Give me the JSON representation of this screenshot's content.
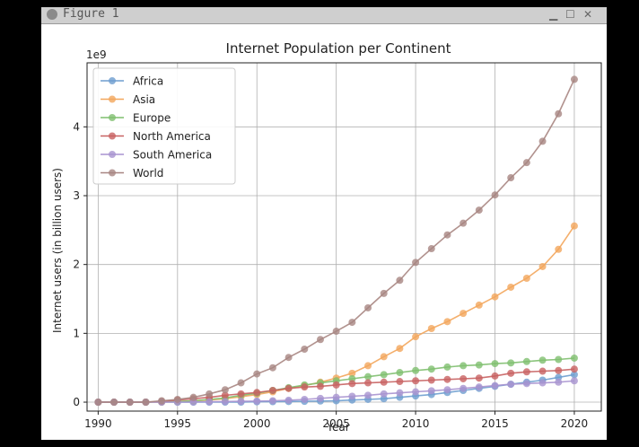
{
  "window": {
    "title": "Figure 1",
    "min_icon": "minimize-icon",
    "max_icon": "maximize-icon",
    "close_icon": "close-icon"
  },
  "chart_data": {
    "type": "line",
    "title": "Internet Population per Continent",
    "xlabel": "Year",
    "ylabel": "Internet users (in billion users)",
    "y_offset_label": "1e9",
    "xlim": [
      1989.3,
      2021.7
    ],
    "ylim": [
      -0.13,
      4.93
    ],
    "x_ticks": [
      1990,
      1995,
      2000,
      2005,
      2010,
      2015,
      2020
    ],
    "y_ticks": [
      0,
      1,
      2,
      3,
      4
    ],
    "grid": true,
    "legend_position": "top-left",
    "x": [
      1990,
      1991,
      1992,
      1993,
      1994,
      1995,
      1996,
      1997,
      1998,
      1999,
      2000,
      2001,
      2002,
      2003,
      2004,
      2005,
      2006,
      2007,
      2008,
      2009,
      2010,
      2011,
      2012,
      2013,
      2014,
      2015,
      2016,
      2017,
      2018,
      2019,
      2020
    ],
    "series": [
      {
        "name": "Africa",
        "color": "#6e9ecf",
        "values": [
          0,
          0,
          0,
          0,
          0,
          0,
          0,
          0,
          0,
          0,
          0.005,
          0.007,
          0.009,
          0.012,
          0.016,
          0.02,
          0.03,
          0.04,
          0.05,
          0.07,
          0.09,
          0.11,
          0.14,
          0.17,
          0.2,
          0.23,
          0.26,
          0.29,
          0.32,
          0.36,
          0.4
        ]
      },
      {
        "name": "Asia",
        "color": "#f3a65c",
        "values": [
          0,
          0,
          0,
          0,
          0.002,
          0.01,
          0.02,
          0.03,
          0.05,
          0.08,
          0.11,
          0.15,
          0.2,
          0.24,
          0.29,
          0.35,
          0.42,
          0.53,
          0.66,
          0.78,
          0.95,
          1.07,
          1.17,
          1.29,
          1.41,
          1.53,
          1.67,
          1.8,
          1.97,
          2.22,
          2.56
        ]
      },
      {
        "name": "Europe",
        "color": "#7fbf6f",
        "values": [
          0,
          0,
          0,
          0,
          0.005,
          0.01,
          0.02,
          0.04,
          0.06,
          0.1,
          0.13,
          0.17,
          0.21,
          0.25,
          0.28,
          0.31,
          0.34,
          0.37,
          0.4,
          0.43,
          0.46,
          0.48,
          0.51,
          0.53,
          0.54,
          0.56,
          0.57,
          0.59,
          0.61,
          0.62,
          0.64
        ]
      },
      {
        "name": "North America",
        "color": "#c86262",
        "values": [
          0,
          0,
          0,
          0,
          0.01,
          0.03,
          0.05,
          0.07,
          0.1,
          0.12,
          0.14,
          0.17,
          0.2,
          0.22,
          0.23,
          0.25,
          0.27,
          0.28,
          0.29,
          0.3,
          0.31,
          0.32,
          0.33,
          0.34,
          0.35,
          0.38,
          0.42,
          0.44,
          0.45,
          0.46,
          0.48
        ]
      },
      {
        "name": "South America",
        "color": "#a894d0",
        "values": [
          0,
          0,
          0,
          0,
          0,
          0,
          0.002,
          0.005,
          0.008,
          0.012,
          0.015,
          0.02,
          0.028,
          0.04,
          0.055,
          0.07,
          0.085,
          0.1,
          0.12,
          0.135,
          0.15,
          0.165,
          0.18,
          0.2,
          0.22,
          0.24,
          0.26,
          0.27,
          0.28,
          0.29,
          0.31
        ]
      },
      {
        "name": "World",
        "color": "#a88682",
        "values": [
          0,
          0,
          0,
          0,
          0.02,
          0.04,
          0.07,
          0.12,
          0.18,
          0.28,
          0.41,
          0.5,
          0.65,
          0.77,
          0.91,
          1.03,
          1.16,
          1.37,
          1.58,
          1.77,
          2.03,
          2.23,
          2.43,
          2.6,
          2.79,
          3.01,
          3.26,
          3.48,
          3.79,
          4.19,
          4.69
        ]
      }
    ]
  }
}
